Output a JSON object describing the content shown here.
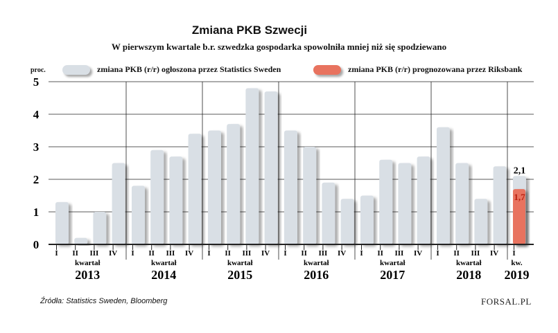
{
  "title": "Zmiana PKB Szwecji",
  "subtitle": "W pierwszym kwartale b.r. szwedzka gospodarka spowolniła mniej niż się spodziewano",
  "unit_label": "proc.",
  "source": "Źródła: Statistics Sweden, Bloomberg",
  "logo": "FORSAL.PL",
  "colors": {
    "actual": "#d9dfe5",
    "forecast": "#e8735f",
    "axis": "#222222",
    "grid": "#222222"
  },
  "chart_data": {
    "type": "bar",
    "title": "Zmiana PKB Szwecji",
    "ylabel": "proc.",
    "ylim": [
      0,
      5
    ],
    "yticks": [
      "0",
      "1",
      "2",
      "3",
      "4",
      "5"
    ],
    "grid": true,
    "legend": "top",
    "series": [
      {
        "name": "zmiana PKB (r/r) ogłoszona przez Statistics Sweden",
        "color": "#d9dfe5"
      },
      {
        "name": "zmiana PKB (r/r) prognozowana przez Riksbank",
        "color": "#e8735f"
      }
    ],
    "categories": [
      "2013 I",
      "2013 II",
      "2013 III",
      "2013 IV",
      "2014 I",
      "2014 II",
      "2014 III",
      "2014 IV",
      "2015 I",
      "2015 II",
      "2015 III",
      "2015 IV",
      "2016 I",
      "2016 II",
      "2016 III",
      "2016 IV",
      "2017 I",
      "2017 II",
      "2017 III",
      "2017 IV",
      "2018 I",
      "2018 II",
      "2018 III",
      "2018 IV",
      "2019 I"
    ],
    "values": [
      1.3,
      0.2,
      1.0,
      2.5,
      1.8,
      2.9,
      2.7,
      3.4,
      3.5,
      3.7,
      4.8,
      4.7,
      3.5,
      3.0,
      1.9,
      1.4,
      1.5,
      2.6,
      2.5,
      2.7,
      3.6,
      2.5,
      1.4,
      2.4,
      2.1
    ],
    "forecast": {
      "category": "2019 I",
      "value": 1.7
    },
    "data_labels": {
      "actual_2019": "2,1",
      "forecast_2019": "1,7"
    },
    "groups": [
      {
        "sublabel": "kwartał",
        "year": "2013",
        "quarters": [
          "I",
          "II",
          "III",
          "IV"
        ]
      },
      {
        "sublabel": "kwartał",
        "year": "2014",
        "quarters": [
          "I",
          "II",
          "III",
          "IV"
        ]
      },
      {
        "sublabel": "kwartał",
        "year": "2015",
        "quarters": [
          "I",
          "II",
          "III",
          "IV"
        ]
      },
      {
        "sublabel": "kwartał",
        "year": "2016",
        "quarters": [
          "I",
          "II",
          "III",
          "IV"
        ]
      },
      {
        "sublabel": "kwartał",
        "year": "2017",
        "quarters": [
          "I",
          "II",
          "III",
          "IV"
        ]
      },
      {
        "sublabel": "kwartał",
        "year": "2018",
        "quarters": [
          "I",
          "II",
          "III",
          "IV"
        ]
      },
      {
        "sublabel": "kw.",
        "year": "2019",
        "quarters": [
          "I"
        ]
      }
    ]
  }
}
